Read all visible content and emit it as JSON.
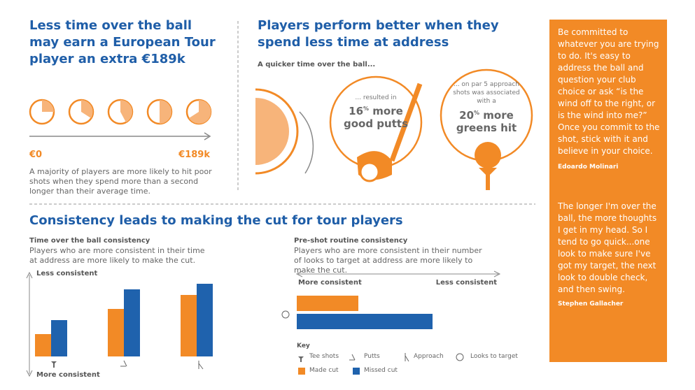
{
  "section1": {
    "title": "Less time over the ball may earn a European Tour player an extra €189k",
    "scale_start": "€0",
    "scale_end": "€189k",
    "text": "A majority of players are more likely to hit poor shots when they spend more than a second longer than their average time."
  },
  "section2": {
    "title": "Players perform better when they spend less time at address",
    "lead": "A quicker time over the ball...",
    "stat1": {
      "pre": "... resulted in",
      "number": "16",
      "unit": "%",
      "word": "more",
      "post": "good putts"
    },
    "stat2": {
      "pre": "... on par 5 approach shots was associated with a",
      "number": "20",
      "unit": "%",
      "word": "more",
      "post": "greens hit"
    }
  },
  "section3": {
    "title": "Consistency leads to making the cut for tour players"
  },
  "sidebar": {
    "quotes": [
      {
        "text": "Be committed to whatever you are trying to do. It's easy to address the ball and question your club choice or ask “is the wind off to the right, or is the wind into me?” Once you commit to the shot, stick with it and believe in your choice.",
        "author": "Edoardo Molinari"
      },
      {
        "text": "The longer I'm over the ball, the more thoughts I get in my head. So I tend to go quick...one look to make sure I've got my target, the next look to double check, and then swing.",
        "author": "Stephen Gallacher"
      }
    ]
  },
  "key": {
    "title": "Key",
    "icons": [
      "Tee shots",
      "Putts",
      "Approach",
      "Looks to target"
    ]
  },
  "chart_data": [
    {
      "type": "bar",
      "title": "Time over the ball consistency",
      "subtitle": "Players who are more consistent in their time at address are more likely to make the cut.",
      "y_label_top": "Less consistent",
      "y_label_bottom": "More consistent",
      "categories": [
        null,
        null,
        null
      ],
      "series": [
        {
          "name": "Made cut",
          "color": "#f28a26",
          "values": [
            32,
            68,
            88
          ]
        },
        {
          "name": "Missed cut",
          "color": "#1f62ad",
          "values": [
            52,
            96,
            104
          ]
        }
      ]
    },
    {
      "type": "hbar",
      "title": "Pre-shot routine consistency",
      "subtitle": "Players who are more consistent in their number of looks to target at address are more likely to make the cut.",
      "x_label_left": "More consistent",
      "x_label_right": "Less consistent",
      "categories": [
        null
      ],
      "series": [
        {
          "name": "Made cut",
          "color": "#f28a26",
          "values": [
            88
          ]
        },
        {
          "name": "Missed cut",
          "color": "#1f62ad",
          "values": [
            194
          ]
        }
      ]
    }
  ]
}
